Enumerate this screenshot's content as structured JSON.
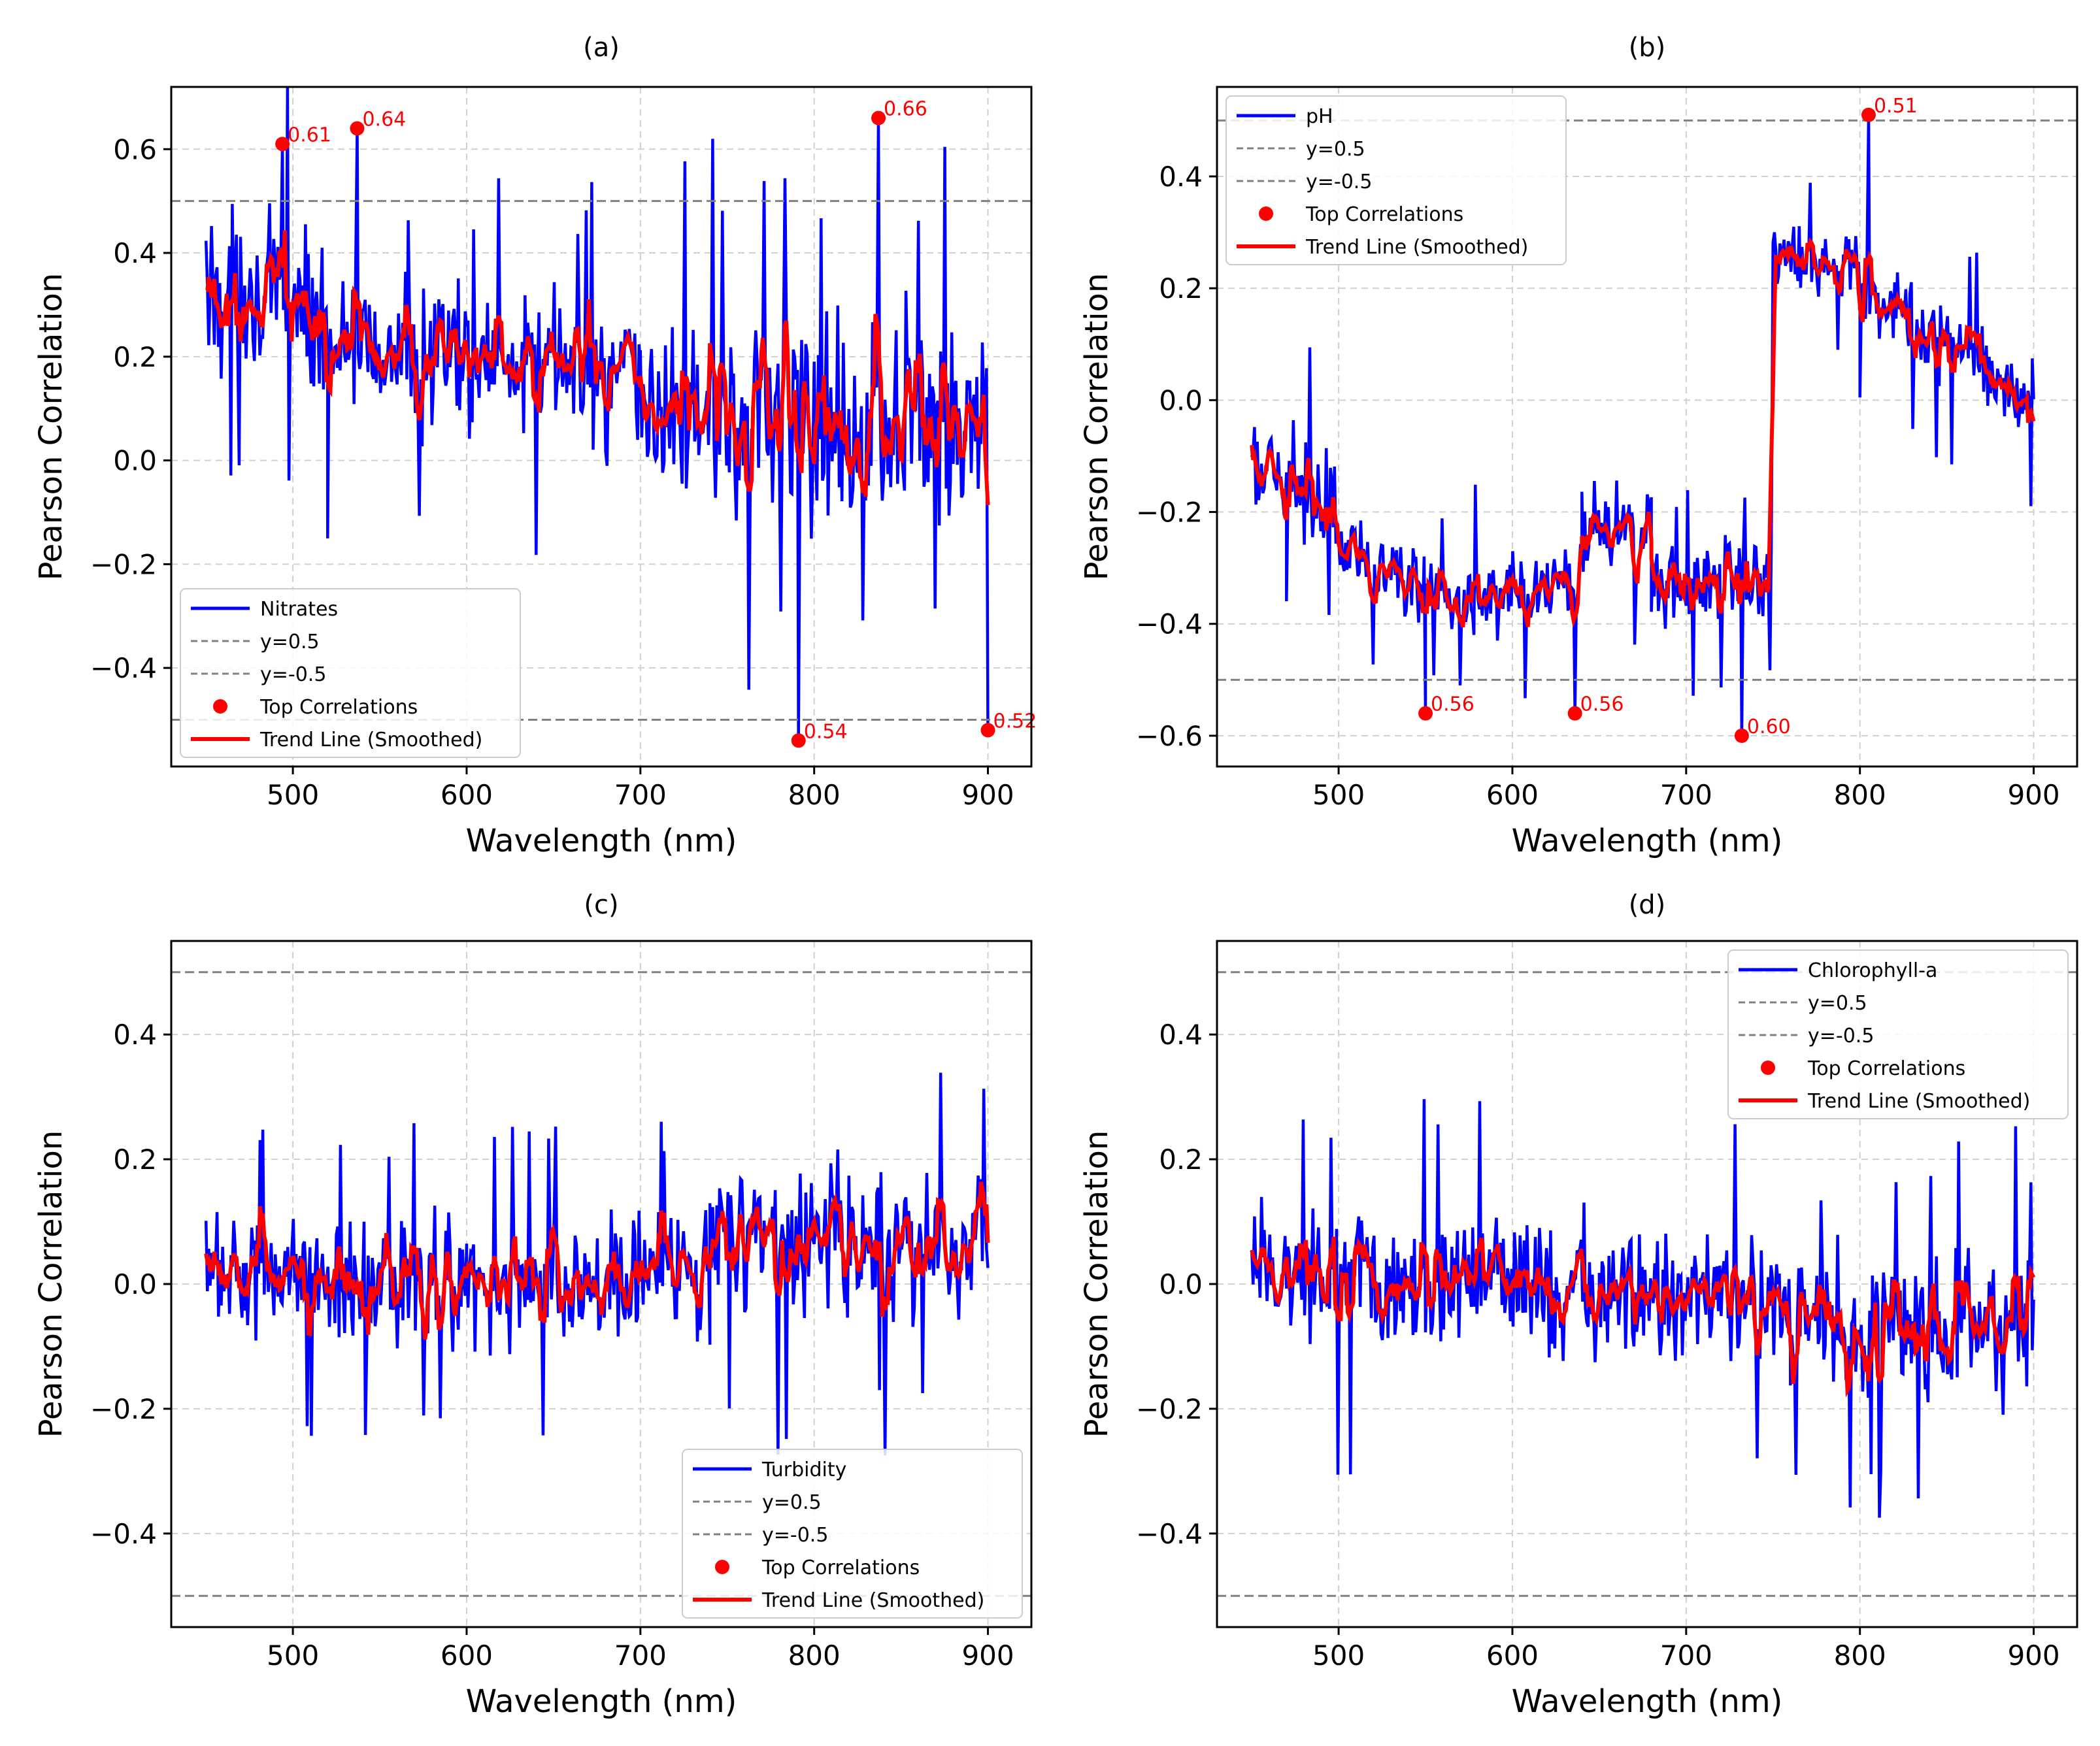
{
  "figure": {
    "colors": {
      "series": "#0000ff",
      "trend": "#ff0000",
      "refline": "#808080",
      "marker": "#ff0000",
      "grid": "#d0d0d0"
    },
    "legend_labels": [
      "y=0.5",
      "y=-0.5",
      "Top Correlations",
      "Trend Line (Smoothed)"
    ]
  },
  "chart_data": [
    {
      "panel": "(a)",
      "type": "line",
      "series_name": "Nitrates",
      "xlabel": "Wavelength (nm)",
      "ylabel": "Pearson Correlation",
      "xlim": [
        430,
        925
      ],
      "ylim": [
        -0.59,
        0.72
      ],
      "xticks": [
        500,
        600,
        700,
        800,
        900
      ],
      "xtick_labels": [
        "500",
        "600",
        "700",
        "800",
        "900"
      ],
      "yticks": [
        -0.4,
        -0.2,
        0.0,
        0.2,
        0.4,
        0.6
      ],
      "ytick_labels": [
        "−0.4",
        "−0.2",
        "0.0",
        "0.2",
        "0.4",
        "0.6"
      ],
      "ref_lines": [
        0.5,
        -0.5
      ],
      "legend_position": "lower-left",
      "segments": [
        {
          "x0": 450,
          "x1": 520,
          "mean0": 0.33,
          "mean1": 0.28,
          "amp": 0.17
        },
        {
          "x0": 520,
          "x1": 700,
          "mean0": 0.22,
          "mean1": 0.16,
          "amp": 0.15
        },
        {
          "x0": 700,
          "x1": 900,
          "mean0": 0.1,
          "mean1": 0.07,
          "amp": 0.22
        }
      ],
      "top_correlations": [
        {
          "x": 494,
          "y": 0.61,
          "label": "0.61"
        },
        {
          "x": 537,
          "y": 0.64,
          "label": "0.64"
        },
        {
          "x": 837,
          "y": 0.66,
          "label": "0.66"
        },
        {
          "x": 791,
          "y": -0.54,
          "label": "0.54"
        },
        {
          "x": 900,
          "y": -0.52,
          "label": "0.52"
        }
      ]
    },
    {
      "panel": "(b)",
      "type": "line",
      "series_name": "pH",
      "xlabel": "Wavelength (nm)",
      "ylabel": "Pearson Correlation",
      "xlim": [
        430,
        925
      ],
      "ylim": [
        -0.655,
        0.56
      ],
      "xticks": [
        500,
        600,
        700,
        800,
        900
      ],
      "xtick_labels": [
        "500",
        "600",
        "700",
        "800",
        "900"
      ],
      "yticks": [
        -0.6,
        -0.4,
        -0.2,
        0.0,
        0.2,
        0.4
      ],
      "ytick_labels": [
        "−0.6",
        "−0.4",
        "−0.2",
        "0.0",
        "0.2",
        "0.4"
      ],
      "ref_lines": [
        0.5,
        -0.5
      ],
      "legend_position": "upper-left",
      "segments": [
        {
          "x0": 450,
          "x1": 470,
          "mean0": -0.12,
          "mean1": -0.15,
          "amp": 0.11
        },
        {
          "x0": 470,
          "x1": 500,
          "mean0": -0.15,
          "mean1": -0.18,
          "amp": 0.11
        },
        {
          "x0": 500,
          "x1": 550,
          "mean0": -0.24,
          "mean1": -0.36,
          "amp": 0.08
        },
        {
          "x0": 550,
          "x1": 640,
          "mean0": -0.36,
          "mean1": -0.33,
          "amp": 0.08
        },
        {
          "x0": 640,
          "x1": 680,
          "mean0": -0.25,
          "mean1": -0.22,
          "amp": 0.1
        },
        {
          "x0": 680,
          "x1": 749,
          "mean0": -0.35,
          "mean1": -0.3,
          "amp": 0.08
        },
        {
          "x0": 750,
          "x1": 800,
          "mean0": 0.26,
          "mean1": 0.24,
          "amp": 0.07
        },
        {
          "x0": 800,
          "x1": 900,
          "mean0": 0.2,
          "mean1": 0.0,
          "amp": 0.09
        }
      ],
      "top_correlations": [
        {
          "x": 805,
          "y": 0.51,
          "label": "0.51"
        },
        {
          "x": 550,
          "y": -0.56,
          "label": "0.56"
        },
        {
          "x": 636,
          "y": -0.56,
          "label": "0.56"
        },
        {
          "x": 732,
          "y": -0.6,
          "label": "0.60"
        }
      ]
    },
    {
      "panel": "(c)",
      "type": "line",
      "series_name": "Turbidity",
      "xlabel": "Wavelength (nm)",
      "ylabel": "Pearson Correlation",
      "xlim": [
        430,
        925
      ],
      "ylim": [
        -0.55,
        0.55
      ],
      "xticks": [
        500,
        600,
        700,
        800,
        900
      ],
      "xtick_labels": [
        "500",
        "600",
        "700",
        "800",
        "900"
      ],
      "yticks": [
        -0.4,
        -0.2,
        0.0,
        0.2,
        0.4
      ],
      "ytick_labels": [
        "−0.4",
        "−0.2",
        "0.0",
        "0.2",
        "0.4"
      ],
      "ref_lines": [
        0.5,
        -0.5
      ],
      "legend_position": "lower-right",
      "segments": [
        {
          "x0": 450,
          "x1": 600,
          "mean0": 0.03,
          "mean1": -0.01,
          "amp": 0.11
        },
        {
          "x0": 600,
          "x1": 740,
          "mean0": -0.01,
          "mean1": 0.02,
          "amp": 0.11
        },
        {
          "x0": 740,
          "x1": 900,
          "mean0": 0.08,
          "mean1": 0.06,
          "amp": 0.14
        }
      ],
      "top_correlations": []
    },
    {
      "panel": "(d)",
      "type": "line",
      "series_name": "Chlorophyll-a",
      "xlabel": "Wavelength (nm)",
      "ylabel": "Pearson Correlation",
      "xlim": [
        430,
        925
      ],
      "ylim": [
        -0.55,
        0.55
      ],
      "xticks": [
        500,
        600,
        700,
        800,
        900
      ],
      "xtick_labels": [
        "500",
        "600",
        "700",
        "800",
        "900"
      ],
      "yticks": [
        -0.4,
        -0.2,
        0.0,
        0.2,
        0.4
      ],
      "ytick_labels": [
        "−0.4",
        "−0.2",
        "0.0",
        "0.2",
        "0.4"
      ],
      "ref_lines": [
        0.5,
        -0.5
      ],
      "legend_position": "upper-right",
      "segments": [
        {
          "x0": 450,
          "x1": 650,
          "mean0": 0.02,
          "mean1": 0.0,
          "amp": 0.13
        },
        {
          "x0": 650,
          "x1": 760,
          "mean0": 0.0,
          "mean1": -0.04,
          "amp": 0.12
        },
        {
          "x0": 760,
          "x1": 900,
          "mean0": -0.08,
          "mean1": -0.06,
          "amp": 0.13
        }
      ],
      "top_correlations": []
    }
  ]
}
